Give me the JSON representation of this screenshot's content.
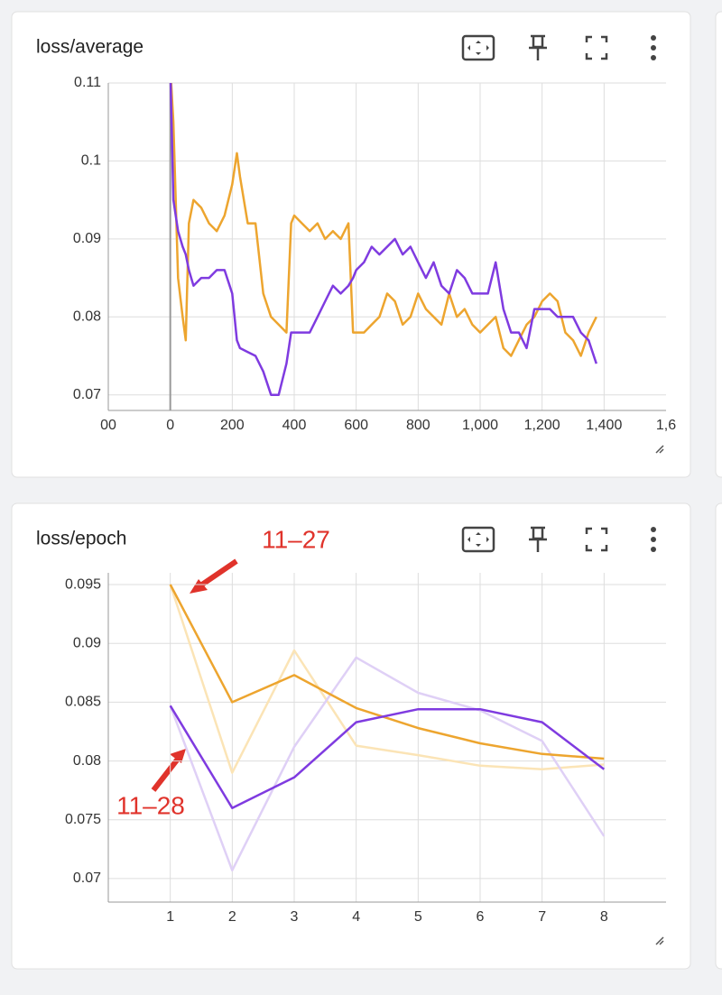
{
  "chart_data": [
    {
      "type": "line",
      "title": "loss/average",
      "x": [
        0,
        10,
        25,
        40,
        50,
        60,
        75,
        100,
        125,
        150,
        175,
        200,
        215,
        225,
        250,
        275,
        300,
        325,
        350,
        375,
        390,
        400,
        425,
        450,
        475,
        500,
        525,
        550,
        575,
        590,
        600,
        625,
        650,
        675,
        700,
        725,
        750,
        775,
        800,
        825,
        850,
        875,
        900,
        925,
        950,
        975,
        1000,
        1025,
        1050,
        1075,
        1100,
        1125,
        1150,
        1175,
        1200,
        1225,
        1250,
        1275,
        1300,
        1325,
        1350,
        1375
      ],
      "series": [
        {
          "color": "#eda52f",
          "values": [
            0.112,
            0.105,
            0.085,
            0.08,
            0.077,
            0.092,
            0.095,
            0.094,
            0.092,
            0.091,
            0.093,
            0.097,
            0.101,
            0.098,
            0.092,
            0.092,
            0.083,
            0.08,
            0.079,
            0.078,
            0.092,
            0.093,
            0.092,
            0.091,
            0.092,
            0.09,
            0.091,
            0.09,
            0.092,
            0.078,
            0.078,
            0.078,
            0.079,
            0.08,
            0.083,
            0.082,
            0.079,
            0.08,
            0.083,
            0.081,
            0.08,
            0.079,
            0.083,
            0.08,
            0.081,
            0.079,
            0.078,
            0.079,
            0.08,
            0.076,
            0.075,
            0.077,
            0.079,
            0.08,
            0.082,
            0.083,
            0.082,
            0.078,
            0.077,
            0.075,
            0.078,
            0.08
          ]
        },
        {
          "color": "#7f3be0",
          "values": [
            0.112,
            0.095,
            0.091,
            0.089,
            0.088,
            0.086,
            0.084,
            0.085,
            0.085,
            0.086,
            0.086,
            0.083,
            0.077,
            0.076,
            0.0755,
            0.075,
            0.073,
            0.07,
            0.07,
            0.074,
            0.078,
            0.078,
            0.078,
            0.078,
            0.08,
            0.082,
            0.084,
            0.083,
            0.084,
            0.085,
            0.086,
            0.087,
            0.089,
            0.088,
            0.089,
            0.09,
            0.088,
            0.089,
            0.087,
            0.085,
            0.087,
            0.084,
            0.083,
            0.086,
            0.085,
            0.083,
            0.083,
            0.083,
            0.087,
            0.081,
            0.078,
            0.078,
            0.076,
            0.081,
            0.081,
            0.081,
            0.08,
            0.08,
            0.08,
            0.078,
            0.077,
            0.074
          ]
        }
      ],
      "xlim": [
        -200,
        1600
      ],
      "xticks": [
        {
          "value": -200,
          "label": "00"
        },
        0,
        200,
        400,
        600,
        800,
        {
          "value": 1000,
          "label": "1,000"
        },
        {
          "value": 1200,
          "label": "1,200"
        },
        {
          "value": 1400,
          "label": "1,400"
        },
        {
          "value": 1600,
          "label": "1,6"
        }
      ],
      "ylim": [
        0.068,
        0.11
      ],
      "yticks": [
        0.07,
        0.08,
        0.09,
        0.1,
        0.11
      ],
      "grid": true
    },
    {
      "type": "line",
      "title": "loss/epoch",
      "x": [
        1,
        2,
        3,
        4,
        5,
        6,
        7,
        8
      ],
      "series": [
        {
          "color": "#fbe4b6",
          "values": [
            0.095,
            0.079,
            0.0894,
            0.0813,
            0.0805,
            0.0796,
            0.0793,
            0.0797
          ]
        },
        {
          "color": "#dfd0f6",
          "values": [
            0.0847,
            0.0707,
            0.0812,
            0.0888,
            0.0858,
            0.0843,
            0.0817,
            0.0736
          ]
        },
        {
          "color": "#eda52f",
          "values": [
            0.095,
            0.085,
            0.0873,
            0.0845,
            0.0828,
            0.0815,
            0.0806,
            0.0802
          ]
        },
        {
          "color": "#7f3be0",
          "values": [
            0.0847,
            0.076,
            0.0786,
            0.0833,
            0.0844,
            0.0844,
            0.0833,
            0.0793
          ]
        }
      ],
      "xlim": [
        0,
        9
      ],
      "xticks": [
        1,
        2,
        3,
        4,
        5,
        6,
        7,
        8
      ],
      "ylim": [
        0.068,
        0.096
      ],
      "yticks": [
        0.07,
        0.075,
        0.08,
        0.085,
        0.09,
        0.095
      ],
      "grid": true,
      "annotations": [
        "11–27",
        "11–28"
      ]
    }
  ]
}
